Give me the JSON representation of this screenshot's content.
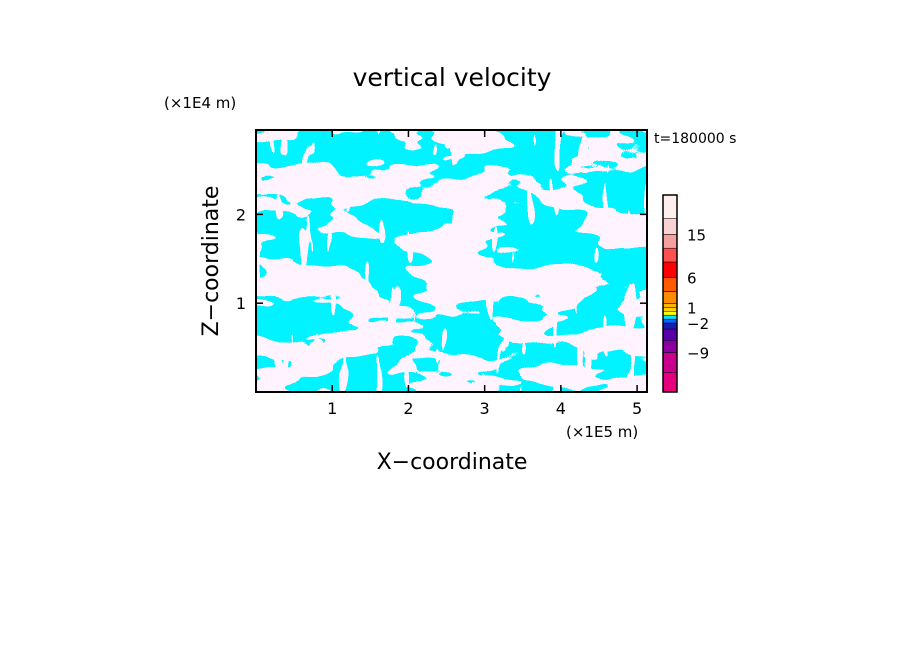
{
  "chart_data": {
    "type": "heatmap",
    "title": "vertical velocity",
    "xlabel": "X−coordinate",
    "ylabel": "Z−coordinate",
    "x_unit_label": "(×1E5 m)",
    "y_unit_label": "(×1E4 m)",
    "time_label": "t=180000 s",
    "xlim": [
      0,
      5.13
    ],
    "ylim": [
      0,
      2.95
    ],
    "x_ticks": [
      {
        "value": 1,
        "label": "1"
      },
      {
        "value": 2,
        "label": "2"
      },
      {
        "value": 3,
        "label": "3"
      },
      {
        "value": 4,
        "label": "4"
      },
      {
        "value": 5,
        "label": "5"
      }
    ],
    "y_ticks": [
      {
        "value": 1,
        "label": "1"
      },
      {
        "value": 2,
        "label": "2"
      }
    ],
    "field_colors": {
      "positive": "#ffff00",
      "negative": "#00e5ff"
    },
    "colorbar": {
      "levels": [
        {
          "value": -12,
          "color": "#e6007e"
        },
        {
          "value": -9,
          "color": "#c8008c"
        },
        {
          "value": -6,
          "color": "#8c00a0"
        },
        {
          "value": -4,
          "color": "#5a00aa"
        },
        {
          "value": -2,
          "color": "#1a1ab4"
        },
        {
          "value": -1,
          "color": "#0064ff"
        },
        {
          "value": 0,
          "color": "#00e5ff"
        },
        {
          "value": 0.5,
          "color": "#ffff00"
        },
        {
          "value": 1,
          "color": "#ffd200"
        },
        {
          "value": 2,
          "color": "#ffb400"
        },
        {
          "value": 3,
          "color": "#ff8c00"
        },
        {
          "value": 6,
          "color": "#ff5a00"
        },
        {
          "value": 9,
          "color": "#ff0000"
        },
        {
          "value": 12,
          "color": "#ff5050"
        },
        {
          "value": 15,
          "color": "#f4a0a0"
        },
        {
          "value": 18,
          "color": "#fad2d2"
        },
        {
          "value": 21,
          "color": "#ffeeee"
        }
      ],
      "labels": [
        {
          "value": -9,
          "label": "−9"
        },
        {
          "value": -2,
          "label": "−2"
        },
        {
          "value": 1,
          "label": "1"
        },
        {
          "value": 6,
          "label": "6"
        },
        {
          "value": 15,
          "label": "15"
        }
      ]
    }
  }
}
